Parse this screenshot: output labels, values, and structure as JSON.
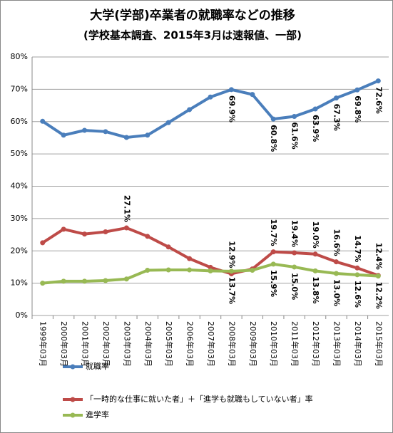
{
  "chart_data": {
    "type": "line",
    "title": "大学(学部)卒業者の就職率などの推移",
    "subtitle": "(学校基本調査、2015年3月は速報値、一部)",
    "categories": [
      "1999年03月",
      "2000年03月",
      "2001年03月",
      "2002年03月",
      "2003年03月",
      "2004年03月",
      "2005年03月",
      "2006年03月",
      "2007年03月",
      "2008年03月",
      "2009年03月",
      "2010年03月",
      "2011年03月",
      "2012年03月",
      "2013年03月",
      "2014年03月",
      "2015年03月"
    ],
    "series": [
      {
        "name": "就職率",
        "color": "#4a7ebb",
        "label_side": "below",
        "values": [
          60.1,
          55.8,
          57.3,
          56.9,
          55.1,
          55.8,
          59.7,
          63.7,
          67.6,
          69.9,
          68.4,
          60.8,
          61.6,
          63.9,
          67.3,
          69.8,
          72.6
        ],
        "value_labels": [
          null,
          null,
          null,
          null,
          null,
          null,
          null,
          null,
          null,
          "69.9%",
          null,
          "60.8%",
          "61.6%",
          "63.9%",
          "67.3%",
          "69.8%",
          "72.6%"
        ]
      },
      {
        "name": "「一時的な仕事に就いた者」＋「進学も就職もしていない者」率",
        "color": "#be4b48",
        "label_side": "above",
        "values": [
          22.5,
          26.7,
          25.2,
          25.9,
          27.1,
          24.5,
          21.2,
          17.6,
          14.9,
          12.9,
          14.4,
          19.7,
          19.4,
          19.0,
          16.6,
          14.7,
          12.4
        ],
        "value_labels": [
          null,
          null,
          null,
          null,
          "27.1%",
          null,
          null,
          null,
          null,
          "12.9%",
          null,
          "19.7%",
          "19.4%",
          "19.0%",
          "16.6%",
          "14.7%",
          "12.4%"
        ]
      },
      {
        "name": "進学率",
        "color": "#98b954",
        "label_side": "below",
        "values": [
          10.0,
          10.6,
          10.6,
          10.8,
          11.3,
          14.0,
          14.1,
          14.1,
          13.8,
          13.7,
          14.0,
          15.9,
          15.0,
          13.8,
          13.0,
          12.6,
          12.2
        ],
        "value_labels": [
          null,
          null,
          null,
          null,
          null,
          null,
          null,
          null,
          null,
          "13.7%",
          null,
          "15.9%",
          "15.0%",
          "13.8%",
          "13.0%",
          "12.6%",
          "12.2%"
        ]
      }
    ],
    "ylim": [
      0,
      80
    ],
    "yticks": [
      {
        "value": 0,
        "label": "0%"
      },
      {
        "value": 10,
        "label": "10%"
      },
      {
        "value": 20,
        "label": "20%"
      },
      {
        "value": 30,
        "label": "30%"
      },
      {
        "value": 40,
        "label": "40%"
      },
      {
        "value": 50,
        "label": "50%"
      },
      {
        "value": 60,
        "label": "60%"
      },
      {
        "value": 70,
        "label": "70%"
      },
      {
        "value": 80,
        "label": "80%"
      }
    ],
    "grid": true,
    "legend": "bottom"
  }
}
